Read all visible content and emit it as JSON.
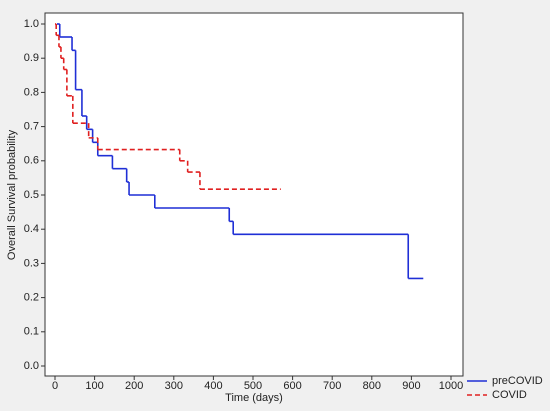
{
  "chart_data": {
    "type": "step",
    "xlabel": "Time (days)",
    "ylabel": "Overall Survival probability",
    "xlim": [
      0,
      1000
    ],
    "xticks": [
      0,
      100,
      200,
      300,
      400,
      500,
      600,
      700,
      800,
      900,
      1000
    ],
    "ylim": [
      0,
      1
    ],
    "yticks": [
      {
        "value": 0,
        "label": "0.0"
      },
      {
        "value": 0.1,
        "label": "0.1"
      },
      {
        "value": 0.2,
        "label": "0.2"
      },
      {
        "value": 0.3,
        "label": "0.3"
      },
      {
        "value": 0.4,
        "label": "0.4"
      },
      {
        "value": 0.5,
        "label": "0.5"
      },
      {
        "value": 0.6,
        "label": "0.6"
      },
      {
        "value": 0.7,
        "label": "0.7"
      },
      {
        "value": 0.8,
        "label": "0.8"
      },
      {
        "value": 0.9,
        "label": "0.9"
      },
      {
        "value": 1,
        "label": "1.0"
      }
    ],
    "grid": false,
    "legend": "bottom-right",
    "series": [
      {
        "name": "preCOVID",
        "color": "#1f2fd6",
        "dash": false,
        "x": [
          5,
          12,
          43,
          52,
          68,
          80,
          95,
          108,
          145,
          181,
          187,
          252,
          440,
          450,
          892,
          930
        ],
        "values": [
          1.0,
          0.962,
          0.923,
          0.808,
          0.731,
          0.692,
          0.654,
          0.615,
          0.577,
          0.538,
          0.5,
          0.462,
          0.423,
          0.385,
          0.256,
          0.256
        ]
      },
      {
        "name": "COVID",
        "color": "#e02020",
        "dash": true,
        "x": [
          0,
          3,
          10,
          15,
          22,
          30,
          45,
          85,
          108,
          315,
          335,
          366,
          570
        ],
        "values": [
          1.0,
          0.967,
          0.933,
          0.9,
          0.867,
          0.79,
          0.71,
          0.667,
          0.633,
          0.6,
          0.567,
          0.517,
          0.517
        ]
      }
    ]
  }
}
